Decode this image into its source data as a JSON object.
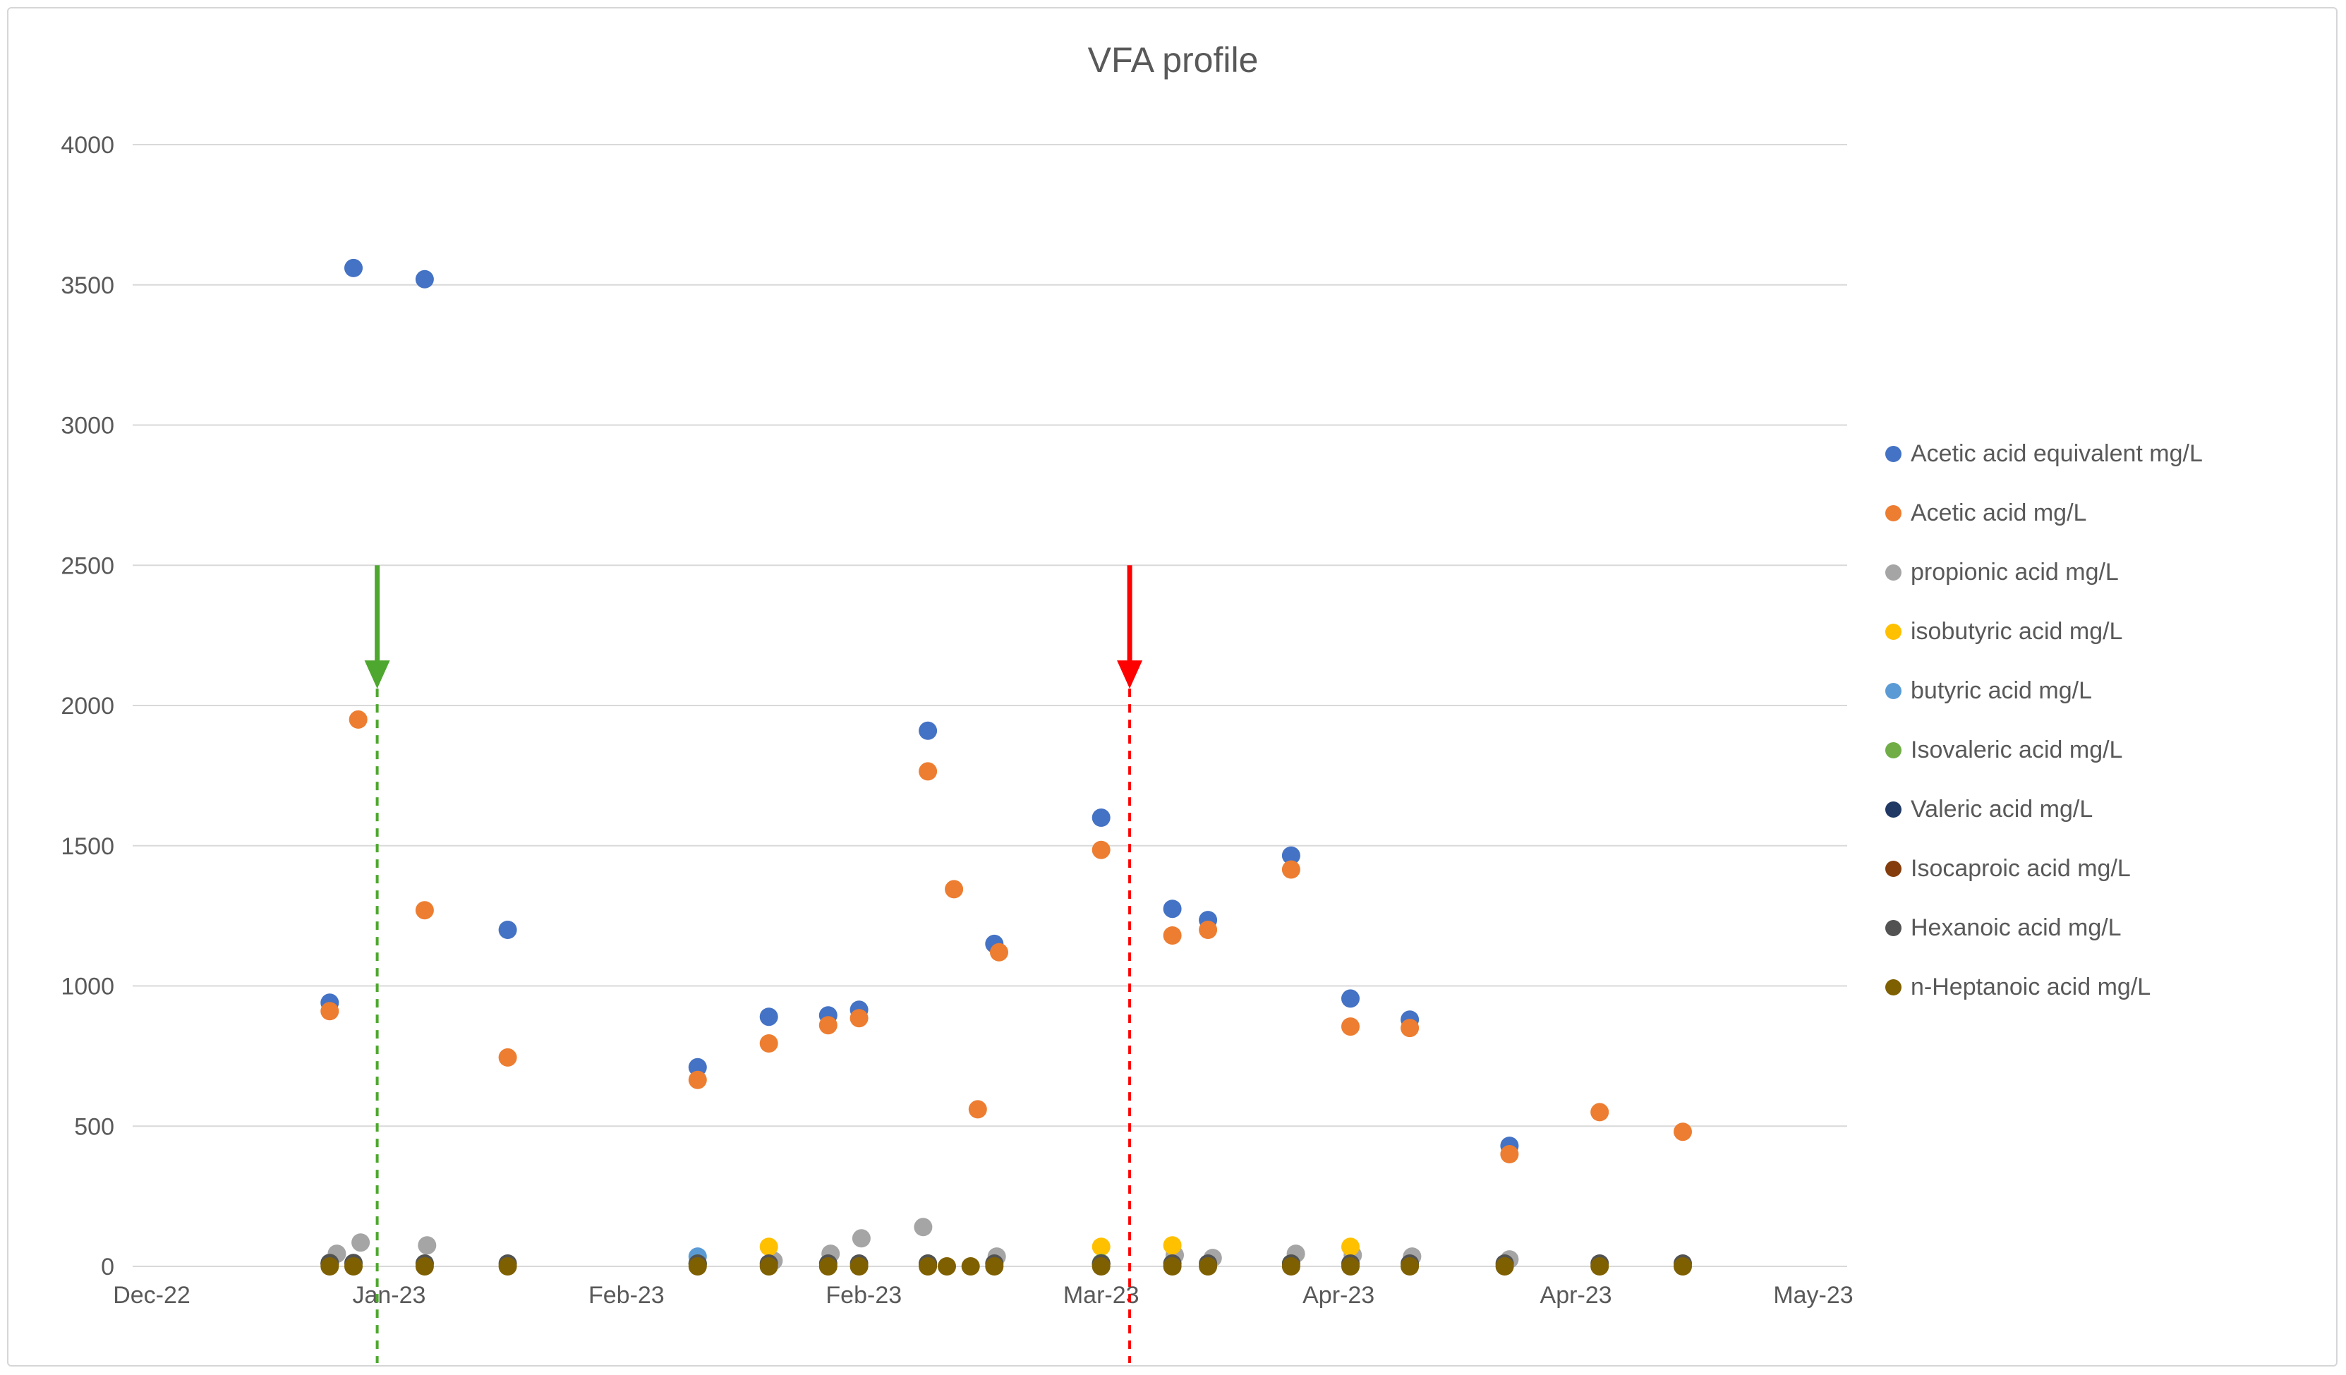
{
  "chart_data": {
    "type": "scatter",
    "title": "VFA profile",
    "xlabel": "",
    "ylabel": "",
    "x_tick_labels": [
      "Dec-22",
      "Jan-23",
      "Feb-23",
      "Feb-23",
      "Mar-23",
      "Apr-23",
      "Apr-23",
      "May-23"
    ],
    "y_ticks": [
      0,
      500,
      1000,
      1500,
      2000,
      2500,
      3000,
      3500,
      4000
    ],
    "y_range": [
      0,
      4000
    ],
    "layout": {
      "grid": "horizontal-only",
      "grid_color": "#D9D9D9",
      "axis_text_color": "#595959",
      "legend_position": "right"
    },
    "series": [
      {
        "name": "Acetic acid equivalent mg/L",
        "color": "#4472C4",
        "points": [
          [
            0.75,
            940
          ],
          [
            0.85,
            3560
          ],
          [
            1.15,
            3520
          ],
          [
            1.5,
            1200
          ],
          [
            2.3,
            710
          ],
          [
            2.6,
            890
          ],
          [
            2.85,
            895
          ],
          [
            2.98,
            915
          ],
          [
            3.27,
            1910
          ],
          [
            3.55,
            1150
          ],
          [
            4.0,
            1600
          ],
          [
            4.3,
            1275
          ],
          [
            4.45,
            1235
          ],
          [
            4.8,
            1465
          ],
          [
            5.05,
            955
          ],
          [
            5.3,
            880
          ],
          [
            5.72,
            430
          ]
        ]
      },
      {
        "name": "Acetic acid mg/L",
        "color": "#ED7D31",
        "points": [
          [
            0.75,
            910
          ],
          [
            0.87,
            1950
          ],
          [
            1.15,
            1270
          ],
          [
            1.5,
            745
          ],
          [
            2.3,
            665
          ],
          [
            2.6,
            795
          ],
          [
            2.85,
            860
          ],
          [
            2.98,
            885
          ],
          [
            3.27,
            1765
          ],
          [
            3.38,
            1345
          ],
          [
            3.48,
            560
          ],
          [
            3.57,
            1120
          ],
          [
            4.0,
            1485
          ],
          [
            4.3,
            1180
          ],
          [
            4.45,
            1200
          ],
          [
            4.8,
            1415
          ],
          [
            5.05,
            855
          ],
          [
            5.3,
            850
          ],
          [
            5.72,
            400
          ],
          [
            6.1,
            550
          ],
          [
            6.45,
            480
          ]
        ]
      },
      {
        "name": "propionic acid mg/L",
        "color": "#A5A5A5",
        "points": [
          [
            0.78,
            45
          ],
          [
            0.88,
            85
          ],
          [
            1.16,
            75
          ],
          [
            2.62,
            20
          ],
          [
            2.86,
            45
          ],
          [
            2.99,
            100
          ],
          [
            3.25,
            140
          ],
          [
            3.56,
            35
          ],
          [
            4.31,
            40
          ],
          [
            4.47,
            30
          ],
          [
            4.82,
            45
          ],
          [
            5.06,
            40
          ],
          [
            5.31,
            35
          ],
          [
            5.72,
            25
          ]
        ]
      },
      {
        "name": "isobutyric acid mg/L",
        "color": "#FFC000",
        "points": [
          [
            2.6,
            70
          ],
          [
            4.0,
            70
          ],
          [
            4.3,
            75
          ],
          [
            5.05,
            70
          ]
        ]
      },
      {
        "name": "butyric acid mg/L",
        "color": "#5B9BD5",
        "points": [
          [
            2.3,
            35
          ]
        ]
      },
      {
        "name": "Isovaleric acid mg/L",
        "color": "#70AD47",
        "points": [
          [
            0.75,
            12
          ],
          [
            1.15,
            10
          ],
          [
            2.3,
            10
          ],
          [
            3.27,
            10
          ],
          [
            4.0,
            12
          ],
          [
            4.8,
            10
          ]
        ]
      },
      {
        "name": "Valeric acid mg/L",
        "color": "#203864",
        "points": [
          [
            0.75,
            8
          ],
          [
            2.3,
            8
          ],
          [
            3.27,
            8
          ],
          [
            4.0,
            8
          ]
        ]
      },
      {
        "name": "Isocaproic acid mg/L",
        "color": "#843C0C",
        "points": [
          [
            0.75,
            8
          ],
          [
            3.27,
            8
          ],
          [
            4.0,
            8
          ]
        ]
      },
      {
        "name": "Hexanoic acid mg/L",
        "color": "#525252",
        "points": [
          [
            0.75,
            12
          ],
          [
            0.85,
            12
          ],
          [
            1.15,
            10
          ],
          [
            1.5,
            10
          ],
          [
            2.3,
            10
          ],
          [
            2.6,
            10
          ],
          [
            2.85,
            10
          ],
          [
            2.98,
            10
          ],
          [
            3.27,
            10
          ],
          [
            3.55,
            10
          ],
          [
            4.0,
            10
          ],
          [
            4.3,
            10
          ],
          [
            4.45,
            10
          ],
          [
            4.8,
            10
          ],
          [
            5.05,
            10
          ],
          [
            5.3,
            10
          ],
          [
            5.7,
            10
          ],
          [
            6.1,
            10
          ],
          [
            6.45,
            10
          ]
        ]
      },
      {
        "name": "n-Heptanoic acid mg/L",
        "color": "#7F6000",
        "points": [
          [
            0.75,
            0
          ],
          [
            0.85,
            0
          ],
          [
            1.15,
            0
          ],
          [
            1.5,
            0
          ],
          [
            2.3,
            0
          ],
          [
            2.6,
            0
          ],
          [
            2.85,
            0
          ],
          [
            2.98,
            0
          ],
          [
            3.27,
            0
          ],
          [
            3.35,
            0
          ],
          [
            3.45,
            0
          ],
          [
            3.55,
            0
          ],
          [
            4.0,
            0
          ],
          [
            4.3,
            0
          ],
          [
            4.45,
            0
          ],
          [
            4.8,
            0
          ],
          [
            5.05,
            0
          ],
          [
            5.3,
            0
          ],
          [
            5.7,
            0
          ],
          [
            6.1,
            0
          ],
          [
            6.45,
            0
          ]
        ]
      }
    ],
    "annotations": [
      {
        "name": "green-arrow-annotation",
        "type": "arrow-down-dashed-line",
        "x": 0.95,
        "color": "#4EA72E",
        "shaft_top_y": 2500,
        "tip_y": 2060
      },
      {
        "name": "red-arrow-annotation",
        "type": "arrow-down-dashed-line",
        "x": 4.12,
        "color": "#FF0000",
        "shaft_top_y": 2500,
        "tip_y": 2060
      }
    ]
  }
}
